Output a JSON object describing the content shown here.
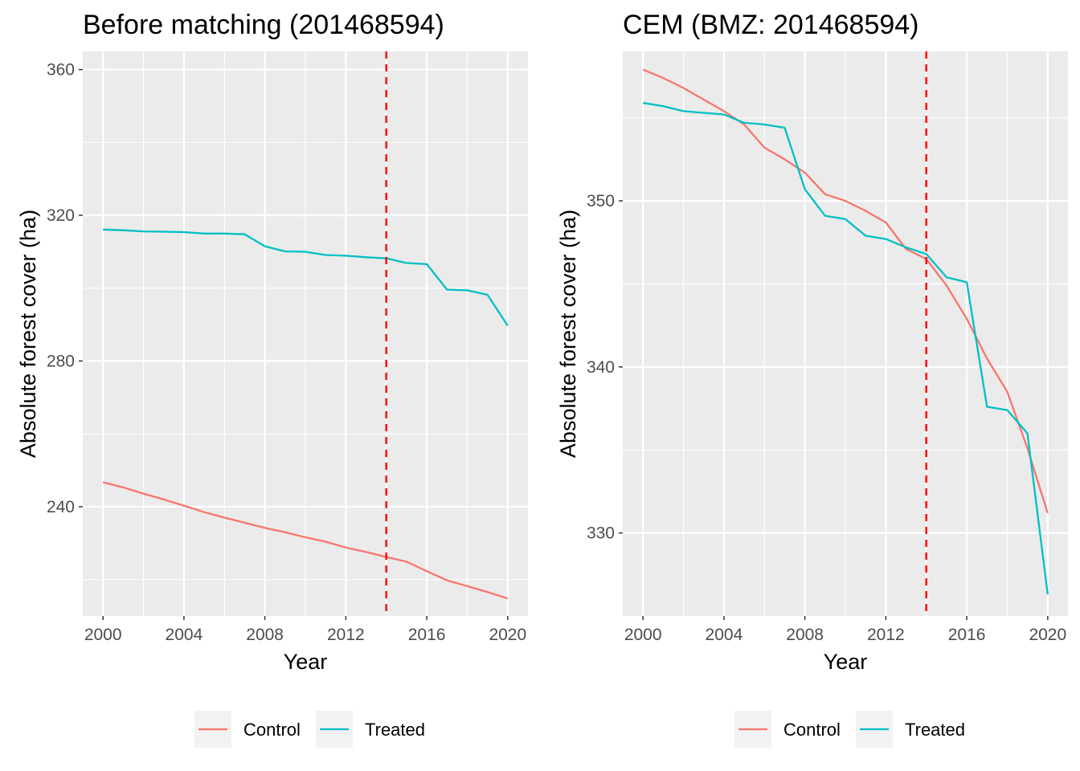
{
  "chart_data": [
    {
      "type": "line",
      "title": "Before matching (201468594)",
      "xlabel": "Year",
      "ylabel": "Absolute forest cover (ha)",
      "xlim": [
        1999,
        2021
      ],
      "ylim": [
        210,
        365
      ],
      "x_ticks": [
        2000,
        2004,
        2008,
        2012,
        2016,
        2020
      ],
      "y_ticks": [
        240,
        280,
        320,
        360
      ],
      "grid": true,
      "vline": {
        "x": 2014,
        "color": "#ff0000",
        "style": "dashed"
      },
      "legend_position": "bottom",
      "x": [
        2000,
        2001,
        2002,
        2003,
        2004,
        2005,
        2006,
        2007,
        2008,
        2009,
        2010,
        2011,
        2012,
        2013,
        2014,
        2015,
        2016,
        2017,
        2018,
        2019,
        2020
      ],
      "series": [
        {
          "name": "Control",
          "color": "#f8766d",
          "values": [
            246.7,
            245.3,
            243.6,
            242.0,
            240.3,
            238.5,
            237.0,
            235.6,
            234.2,
            233.0,
            231.6,
            230.4,
            228.8,
            227.6,
            226.2,
            224.9,
            222.3,
            219.8,
            218.2,
            216.6,
            214.8
          ]
        },
        {
          "name": "Treated",
          "color": "#00bfc4",
          "values": [
            316.1,
            315.9,
            315.6,
            315.5,
            315.4,
            315.0,
            315.0,
            314.8,
            311.5,
            310.1,
            310.0,
            309.1,
            308.9,
            308.5,
            308.2,
            306.9,
            306.6,
            299.6,
            299.4,
            298.2,
            289.7
          ]
        }
      ]
    },
    {
      "type": "line",
      "title": "CEM (BMZ: 201468594)",
      "xlabel": "Year",
      "ylabel": "Absolute forest cover (ha)",
      "xlim": [
        1999,
        2021
      ],
      "ylim": [
        325,
        359
      ],
      "x_ticks": [
        2000,
        2004,
        2008,
        2012,
        2016,
        2020
      ],
      "y_ticks": [
        330,
        340,
        350
      ],
      "grid": true,
      "vline": {
        "x": 2014,
        "color": "#ff0000",
        "style": "dashed"
      },
      "legend_position": "bottom",
      "x": [
        2000,
        2001,
        2002,
        2003,
        2004,
        2005,
        2006,
        2007,
        2008,
        2009,
        2010,
        2011,
        2012,
        2013,
        2014,
        2015,
        2016,
        2017,
        2018,
        2019,
        2020
      ],
      "series": [
        {
          "name": "Control",
          "color": "#f8766d",
          "values": [
            357.9,
            357.4,
            356.8,
            356.1,
            355.4,
            354.6,
            353.2,
            352.5,
            351.7,
            350.4,
            350.0,
            349.4,
            348.7,
            347.1,
            346.5,
            344.9,
            342.9,
            340.5,
            338.5,
            335.1,
            331.2
          ]
        },
        {
          "name": "Treated",
          "color": "#00bfc4",
          "values": [
            355.9,
            355.7,
            355.4,
            355.3,
            355.2,
            354.7,
            354.6,
            354.4,
            350.7,
            349.1,
            348.9,
            347.9,
            347.7,
            347.2,
            346.8,
            345.4,
            345.1,
            337.6,
            337.4,
            336.0,
            326.3
          ]
        }
      ]
    }
  ]
}
